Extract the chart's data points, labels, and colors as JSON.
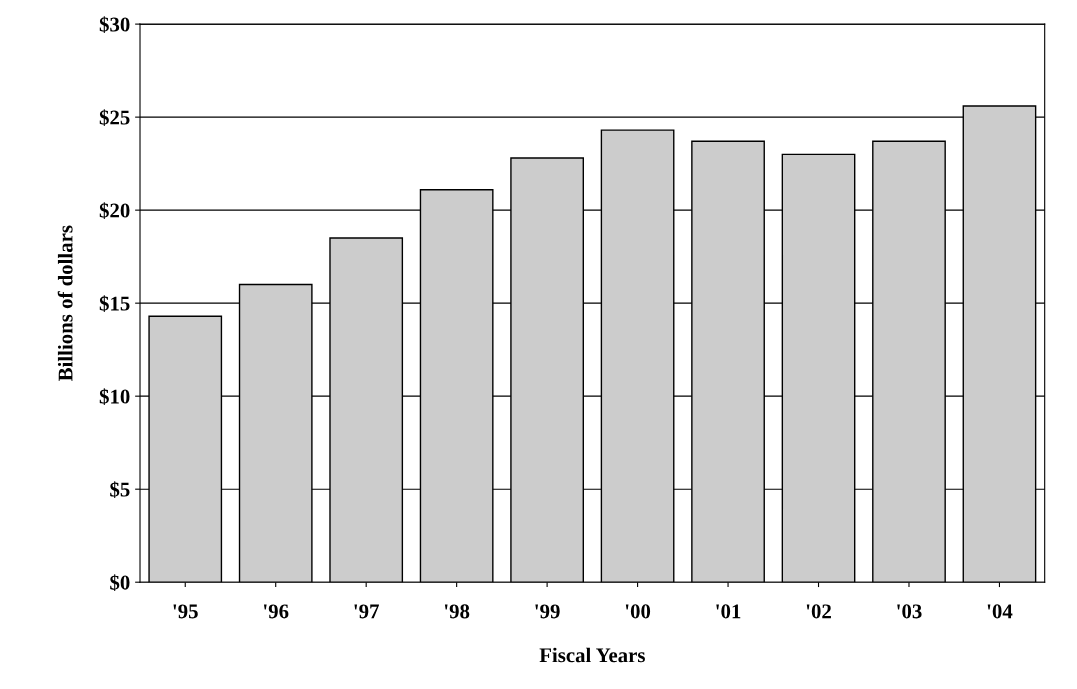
{
  "chart_data": {
    "type": "bar",
    "categories": [
      "'95",
      "'96",
      "'97",
      "'98",
      "'99",
      "'00",
      "'01",
      "'02",
      "'03",
      "'04"
    ],
    "values": [
      14.3,
      16.0,
      18.5,
      21.1,
      22.8,
      24.3,
      23.7,
      23.0,
      23.7,
      25.6
    ],
    "color": "#cccccc",
    "xlabel": "Fiscal Years",
    "ylabel": "Billions of dollars",
    "ylim": [
      0,
      30
    ],
    "yticks": [
      {
        "value": 0,
        "label": "$0"
      },
      {
        "value": 5,
        "label": "$5"
      },
      {
        "value": 10,
        "label": "$10"
      },
      {
        "value": 15,
        "label": "$15"
      },
      {
        "value": 20,
        "label": "$20"
      },
      {
        "value": 25,
        "label": "$25"
      },
      {
        "value": 30,
        "label": "$30"
      }
    ],
    "grid": "y"
  }
}
